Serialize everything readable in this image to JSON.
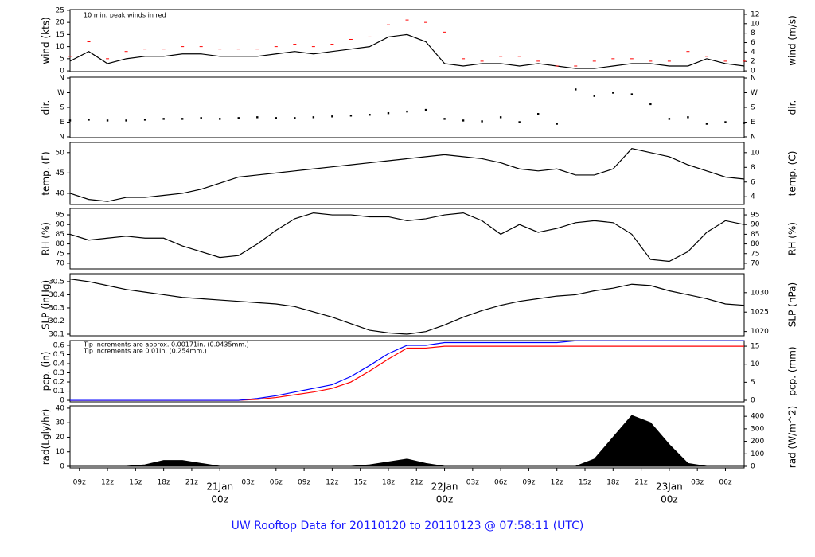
{
  "chart_data": [
    {
      "type": "line",
      "y_label": "wind (kts)",
      "y2_label": "wind (m/s)",
      "annotation": "10 min. peak winds in red",
      "annotation_color": "#cc0000",
      "xlim": [
        8,
        80
      ],
      "ylim": [
        -0.3,
        25.3
      ],
      "yticks": [
        0,
        5,
        10,
        15,
        20,
        25
      ],
      "y2lim": [
        -0.15,
        13.0
      ],
      "y2ticks": [
        0,
        2,
        4,
        6,
        8,
        10,
        12
      ],
      "x": [
        8,
        10,
        12,
        14,
        16,
        18,
        20,
        22,
        24,
        26,
        28,
        30,
        32,
        34,
        36,
        38,
        40,
        42,
        44,
        46,
        48,
        50,
        52,
        54,
        56,
        58,
        60,
        62,
        64,
        66,
        68,
        70,
        72,
        74,
        76,
        78,
        80
      ],
      "series": [
        {
          "name": "wind",
          "color": "#000000",
          "marker": "line",
          "values": [
            4,
            8,
            3,
            5,
            6,
            6,
            7,
            7,
            6,
            6,
            6,
            7,
            8,
            7,
            8,
            9,
            10,
            14,
            15,
            12,
            3,
            2,
            3,
            3,
            2,
            3,
            2,
            1,
            1,
            2,
            3,
            3,
            2,
            2,
            5,
            3,
            2
          ]
        },
        {
          "name": "peak",
          "color": "#ff0000",
          "marker": "dash",
          "values": [
            6,
            12,
            5,
            8,
            9,
            9,
            10,
            10,
            9,
            9,
            9,
            10,
            11,
            10,
            11,
            13,
            14,
            19,
            21,
            20,
            16,
            5,
            4,
            6,
            6,
            4,
            2,
            2,
            4,
            5,
            5,
            4,
            4,
            8,
            6,
            4,
            4
          ]
        }
      ]
    },
    {
      "type": "scatter",
      "y_label": "dir.",
      "y2_label": "dir.",
      "xlim": [
        8,
        80
      ],
      "ylim": [
        -5,
        365
      ],
      "yticks": [
        {
          "value": 0,
          "label": "N"
        },
        {
          "value": 90,
          "label": "E"
        },
        {
          "value": 180,
          "label": "S"
        },
        {
          "value": 270,
          "label": "W"
        },
        {
          "value": 360,
          "label": "N"
        }
      ],
      "y2lim": [
        -5,
        365
      ],
      "y2ticks": [
        {
          "value": 0,
          "label": "N"
        },
        {
          "value": 90,
          "label": "E"
        },
        {
          "value": 180,
          "label": "S"
        },
        {
          "value": 270,
          "label": "W"
        },
        {
          "value": 360,
          "label": "N"
        }
      ],
      "x": [
        8,
        10,
        12,
        14,
        16,
        18,
        20,
        22,
        24,
        26,
        28,
        30,
        32,
        34,
        36,
        38,
        40,
        42,
        44,
        46,
        48,
        50,
        52,
        54,
        56,
        58,
        60,
        62,
        64,
        66,
        68,
        70,
        72,
        74,
        76,
        78,
        80
      ],
      "series": [
        {
          "name": "dir",
          "color": "#000000",
          "values": [
            100,
            105,
            100,
            100,
            105,
            110,
            110,
            115,
            110,
            115,
            120,
            115,
            115,
            120,
            125,
            130,
            135,
            145,
            155,
            165,
            110,
            100,
            95,
            120,
            90,
            140,
            80,
            290,
            250,
            270,
            260,
            200,
            110,
            120,
            80,
            90,
            85
          ]
        }
      ]
    },
    {
      "type": "line",
      "y_label": "temp. (F)",
      "y2_label": "temp. (C)",
      "xlim": [
        8,
        80
      ],
      "ylim": [
        37.25,
        52.5
      ],
      "yticks": [
        40,
        45,
        50
      ],
      "y2lim": [
        2.94,
        11.39
      ],
      "y2ticks": [
        4,
        6,
        8,
        10
      ],
      "x": [
        8,
        10,
        12,
        14,
        16,
        18,
        20,
        22,
        24,
        26,
        28,
        30,
        32,
        34,
        36,
        38,
        40,
        42,
        44,
        46,
        48,
        50,
        52,
        54,
        56,
        58,
        60,
        62,
        64,
        66,
        68,
        70,
        72,
        74,
        76,
        78,
        80
      ],
      "series": [
        {
          "name": "temp",
          "color": "#000000",
          "values": [
            40,
            38.5,
            38,
            39,
            39,
            39.5,
            40,
            41,
            42.5,
            44,
            44.5,
            45,
            45.5,
            46,
            46.5,
            47,
            47.5,
            48,
            48.5,
            49,
            49.5,
            49,
            48.5,
            47.5,
            46,
            45.5,
            46,
            44.5,
            44.5,
            46,
            51,
            50,
            49,
            47,
            45.5,
            44,
            43.5
          ]
        }
      ]
    },
    {
      "type": "line",
      "y_label": "RH (%)",
      "y2_label": "RH (%)",
      "xlim": [
        8,
        80
      ],
      "ylim": [
        67.1,
        98.3
      ],
      "yticks": [
        70,
        75,
        80,
        85,
        90,
        95
      ],
      "y2lim": [
        67.1,
        98.3
      ],
      "y2ticks": [
        70,
        75,
        80,
        85,
        90,
        95
      ],
      "x": [
        8,
        10,
        12,
        14,
        16,
        18,
        20,
        22,
        24,
        26,
        28,
        30,
        32,
        34,
        36,
        38,
        40,
        42,
        44,
        46,
        48,
        50,
        52,
        54,
        56,
        58,
        60,
        62,
        64,
        66,
        68,
        70,
        72,
        74,
        76,
        78,
        80
      ],
      "series": [
        {
          "name": "RH",
          "color": "#000000",
          "values": [
            85,
            82,
            83,
            84,
            83,
            83,
            79,
            76,
            73,
            74,
            80,
            87,
            93,
            96,
            95,
            95,
            94,
            94,
            92,
            93,
            95,
            96,
            92,
            85,
            90,
            86,
            88,
            91,
            92,
            91,
            85,
            72,
            71,
            76,
            86,
            92,
            90
          ]
        }
      ]
    },
    {
      "type": "line",
      "y_label": "SLP (inHg)",
      "y2_label": "SLP (hPa)",
      "xlim": [
        8,
        80
      ],
      "ylim": [
        30.088,
        30.56
      ],
      "yticks": [
        30.1,
        30.2,
        30.3,
        30.4,
        30.5
      ],
      "y2lim": [
        1018.9,
        1034.88
      ],
      "y2ticks": [
        1020,
        1025,
        1030
      ],
      "x": [
        8,
        10,
        12,
        14,
        16,
        18,
        20,
        22,
        24,
        26,
        28,
        30,
        32,
        34,
        36,
        38,
        40,
        42,
        44,
        46,
        48,
        50,
        52,
        54,
        56,
        58,
        60,
        62,
        64,
        66,
        68,
        70,
        72,
        74,
        76,
        78,
        80
      ],
      "series": [
        {
          "name": "SLP",
          "color": "#000000",
          "values": [
            30.52,
            30.5,
            30.47,
            30.44,
            30.42,
            30.4,
            30.38,
            30.37,
            30.36,
            30.35,
            30.34,
            30.33,
            30.31,
            30.27,
            30.23,
            30.18,
            30.13,
            30.11,
            30.1,
            30.12,
            30.17,
            30.23,
            30.28,
            30.32,
            30.35,
            30.37,
            30.39,
            30.4,
            30.43,
            30.45,
            30.48,
            30.47,
            30.43,
            30.4,
            30.37,
            30.33,
            30.32
          ]
        }
      ]
    },
    {
      "type": "line",
      "y_label": "pcp. (in)",
      "y2_label": "pcp. (mm)",
      "annotations": [
        {
          "text": "Tip increments are approx. 0.00171in. (0.0435mm.)",
          "color": "#cc0000"
        },
        {
          "text": "Tip increments are 0.01in. (0.254mm.)",
          "color": "#0000cc"
        }
      ],
      "xlim": [
        8,
        80
      ],
      "ylim": [
        -0.017,
        0.652
      ],
      "yticks": [
        0,
        0.1,
        0.2,
        0.3,
        0.4,
        0.5,
        0.6
      ],
      "y2lim": [
        -0.44,
        16.56
      ],
      "y2ticks": [
        0,
        5,
        10,
        15
      ],
      "x": [
        8,
        10,
        12,
        14,
        16,
        18,
        20,
        22,
        24,
        26,
        28,
        30,
        32,
        34,
        36,
        38,
        40,
        42,
        44,
        46,
        48,
        50,
        52,
        54,
        56,
        58,
        60,
        62,
        64,
        66,
        68,
        70,
        72,
        74,
        76,
        78,
        80
      ],
      "series": [
        {
          "name": "pcp-red",
          "color": "#ff0000",
          "marker": "line",
          "values": [
            0,
            0,
            0,
            0,
            0,
            0,
            0,
            0,
            0,
            0,
            0.01,
            0.03,
            0.06,
            0.09,
            0.13,
            0.2,
            0.32,
            0.45,
            0.57,
            0.57,
            0.59,
            0.59,
            0.59,
            0.59,
            0.59,
            0.59,
            0.59,
            0.59,
            0.59,
            0.59,
            0.59,
            0.59,
            0.59,
            0.59,
            0.59,
            0.59,
            0.59
          ]
        },
        {
          "name": "pcp-blue",
          "color": "#0000ff",
          "marker": "line",
          "values": [
            0,
            0,
            0,
            0,
            0,
            0,
            0,
            0,
            0,
            0,
            0.02,
            0.05,
            0.09,
            0.13,
            0.17,
            0.26,
            0.38,
            0.51,
            0.6,
            0.6,
            0.63,
            0.63,
            0.63,
            0.63,
            0.63,
            0.63,
            0.63,
            0.65,
            0.65,
            0.65,
            0.65,
            0.65,
            0.65,
            0.65,
            0.65,
            0.65,
            0.65
          ]
        }
      ]
    },
    {
      "type": "area",
      "y_label": "rad(Lgly/hr)",
      "y2_label": "rad (W/m^2)",
      "title": "UW Rooftop Data for 20110120  to  20110123 @ 07:58:11  (UTC)",
      "xlim": [
        8,
        80
      ],
      "ylim": [
        -1.1,
        41.6
      ],
      "yticks": [
        0,
        10,
        20,
        30,
        40
      ],
      "y2lim": [
        -12.8,
        483.8
      ],
      "y2ticks": [
        0,
        100,
        200,
        300,
        400
      ],
      "tick_color": "#000000",
      "date_color": "#cc0000",
      "xticks": [
        {
          "value": 9,
          "label": "09z"
        },
        {
          "value": 12,
          "label": "12z"
        },
        {
          "value": 15,
          "label": "15z"
        },
        {
          "value": 18,
          "label": "18z"
        },
        {
          "value": 21,
          "label": "21z"
        },
        {
          "value": 24,
          "label": "00z"
        },
        {
          "value": 27,
          "label": "03z"
        },
        {
          "value": 30,
          "label": "06z"
        },
        {
          "value": 33,
          "label": "09z"
        },
        {
          "value": 36,
          "label": "12z"
        },
        {
          "value": 39,
          "label": "15z"
        },
        {
          "value": 42,
          "label": "18z"
        },
        {
          "value": 45,
          "label": "21z"
        },
        {
          "value": 48,
          "label": "00z"
        },
        {
          "value": 51,
          "label": "03z"
        },
        {
          "value": 54,
          "label": "06z"
        },
        {
          "value": 57,
          "label": "09z"
        },
        {
          "value": 60,
          "label": "12z"
        },
        {
          "value": 63,
          "label": "15z"
        },
        {
          "value": 66,
          "label": "18z"
        },
        {
          "value": 69,
          "label": "21z"
        },
        {
          "value": 72,
          "label": "00z"
        },
        {
          "value": 75,
          "label": "03z"
        },
        {
          "value": 78,
          "label": "06z"
        }
      ],
      "date_labels": [
        {
          "value": 24,
          "label": "21Jan"
        },
        {
          "value": 48,
          "label": "22Jan"
        },
        {
          "value": 72,
          "label": "23Jan"
        }
      ],
      "x": [
        8,
        10,
        12,
        14,
        16,
        18,
        20,
        22,
        24,
        26,
        28,
        30,
        32,
        34,
        36,
        38,
        40,
        42,
        44,
        46,
        48,
        50,
        52,
        54,
        56,
        58,
        60,
        62,
        64,
        66,
        68,
        70,
        72,
        74,
        76,
        78,
        80
      ],
      "series": [
        {
          "name": "rad",
          "color": "#000000",
          "values": [
            0,
            0,
            0,
            0,
            1,
            4,
            4,
            2,
            0,
            0,
            0,
            0,
            0,
            0,
            0,
            0,
            1,
            3,
            5,
            2,
            0,
            0,
            0,
            0,
            0,
            0,
            0,
            0,
            5,
            20,
            35,
            30,
            15,
            2,
            0,
            0,
            0
          ]
        }
      ]
    }
  ]
}
